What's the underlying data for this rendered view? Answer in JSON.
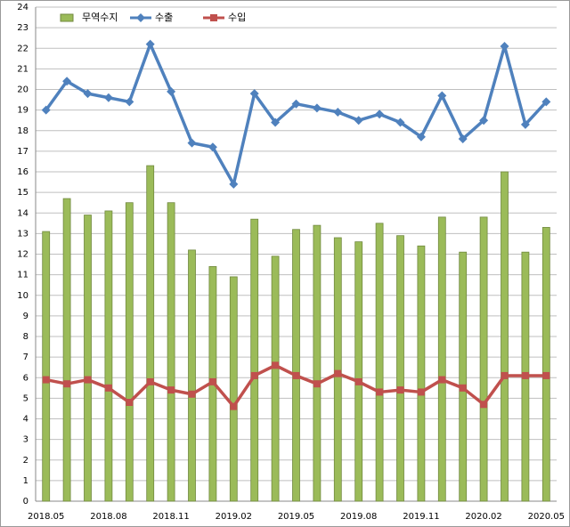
{
  "chart_data": {
    "type": "bar",
    "categories": [
      "2018.05",
      null,
      null,
      "2018.08",
      null,
      null,
      "2018.11",
      null,
      null,
      "2019.02",
      null,
      null,
      "2019.05",
      null,
      null,
      "2019.08",
      null,
      null,
      "2019.11",
      null,
      null,
      "2020.02",
      null,
      null,
      "2020.05"
    ],
    "series": [
      {
        "name": "무역수지",
        "type": "bar",
        "color": "#9bbb59",
        "values": [
          13.1,
          14.7,
          13.9,
          14.1,
          14.5,
          16.3,
          14.5,
          12.2,
          11.4,
          10.9,
          13.7,
          11.9,
          13.2,
          13.4,
          12.8,
          12.6,
          13.5,
          12.9,
          12.4,
          13.8,
          12.1,
          13.8,
          16.0,
          12.1,
          13.3
        ]
      },
      {
        "name": "수출",
        "type": "line",
        "marker": "diamond",
        "color": "#4f81bd",
        "values": [
          19.0,
          20.4,
          19.8,
          19.6,
          19.4,
          22.2,
          19.9,
          17.4,
          17.2,
          15.4,
          19.8,
          18.4,
          19.3,
          19.1,
          18.9,
          18.5,
          18.8,
          18.4,
          17.7,
          19.7,
          17.6,
          18.5,
          22.1,
          18.3,
          19.4
        ]
      },
      {
        "name": "수입",
        "type": "line",
        "marker": "square",
        "color": "#c0504d",
        "values": [
          5.9,
          5.7,
          5.9,
          5.5,
          4.8,
          5.8,
          5.4,
          5.2,
          5.8,
          4.6,
          6.1,
          6.6,
          6.1,
          5.7,
          6.2,
          5.8,
          5.3,
          5.4,
          5.3,
          5.9,
          5.5,
          4.7,
          6.1,
          6.1,
          6.1
        ]
      }
    ],
    "ylim": [
      0,
      24
    ],
    "yticks": [
      0,
      1,
      2,
      3,
      4,
      5,
      6,
      7,
      8,
      9,
      10,
      11,
      12,
      13,
      14,
      15,
      16,
      17,
      18,
      19,
      20,
      21,
      22,
      23,
      24
    ],
    "grid": true,
    "legend": "top-left"
  }
}
